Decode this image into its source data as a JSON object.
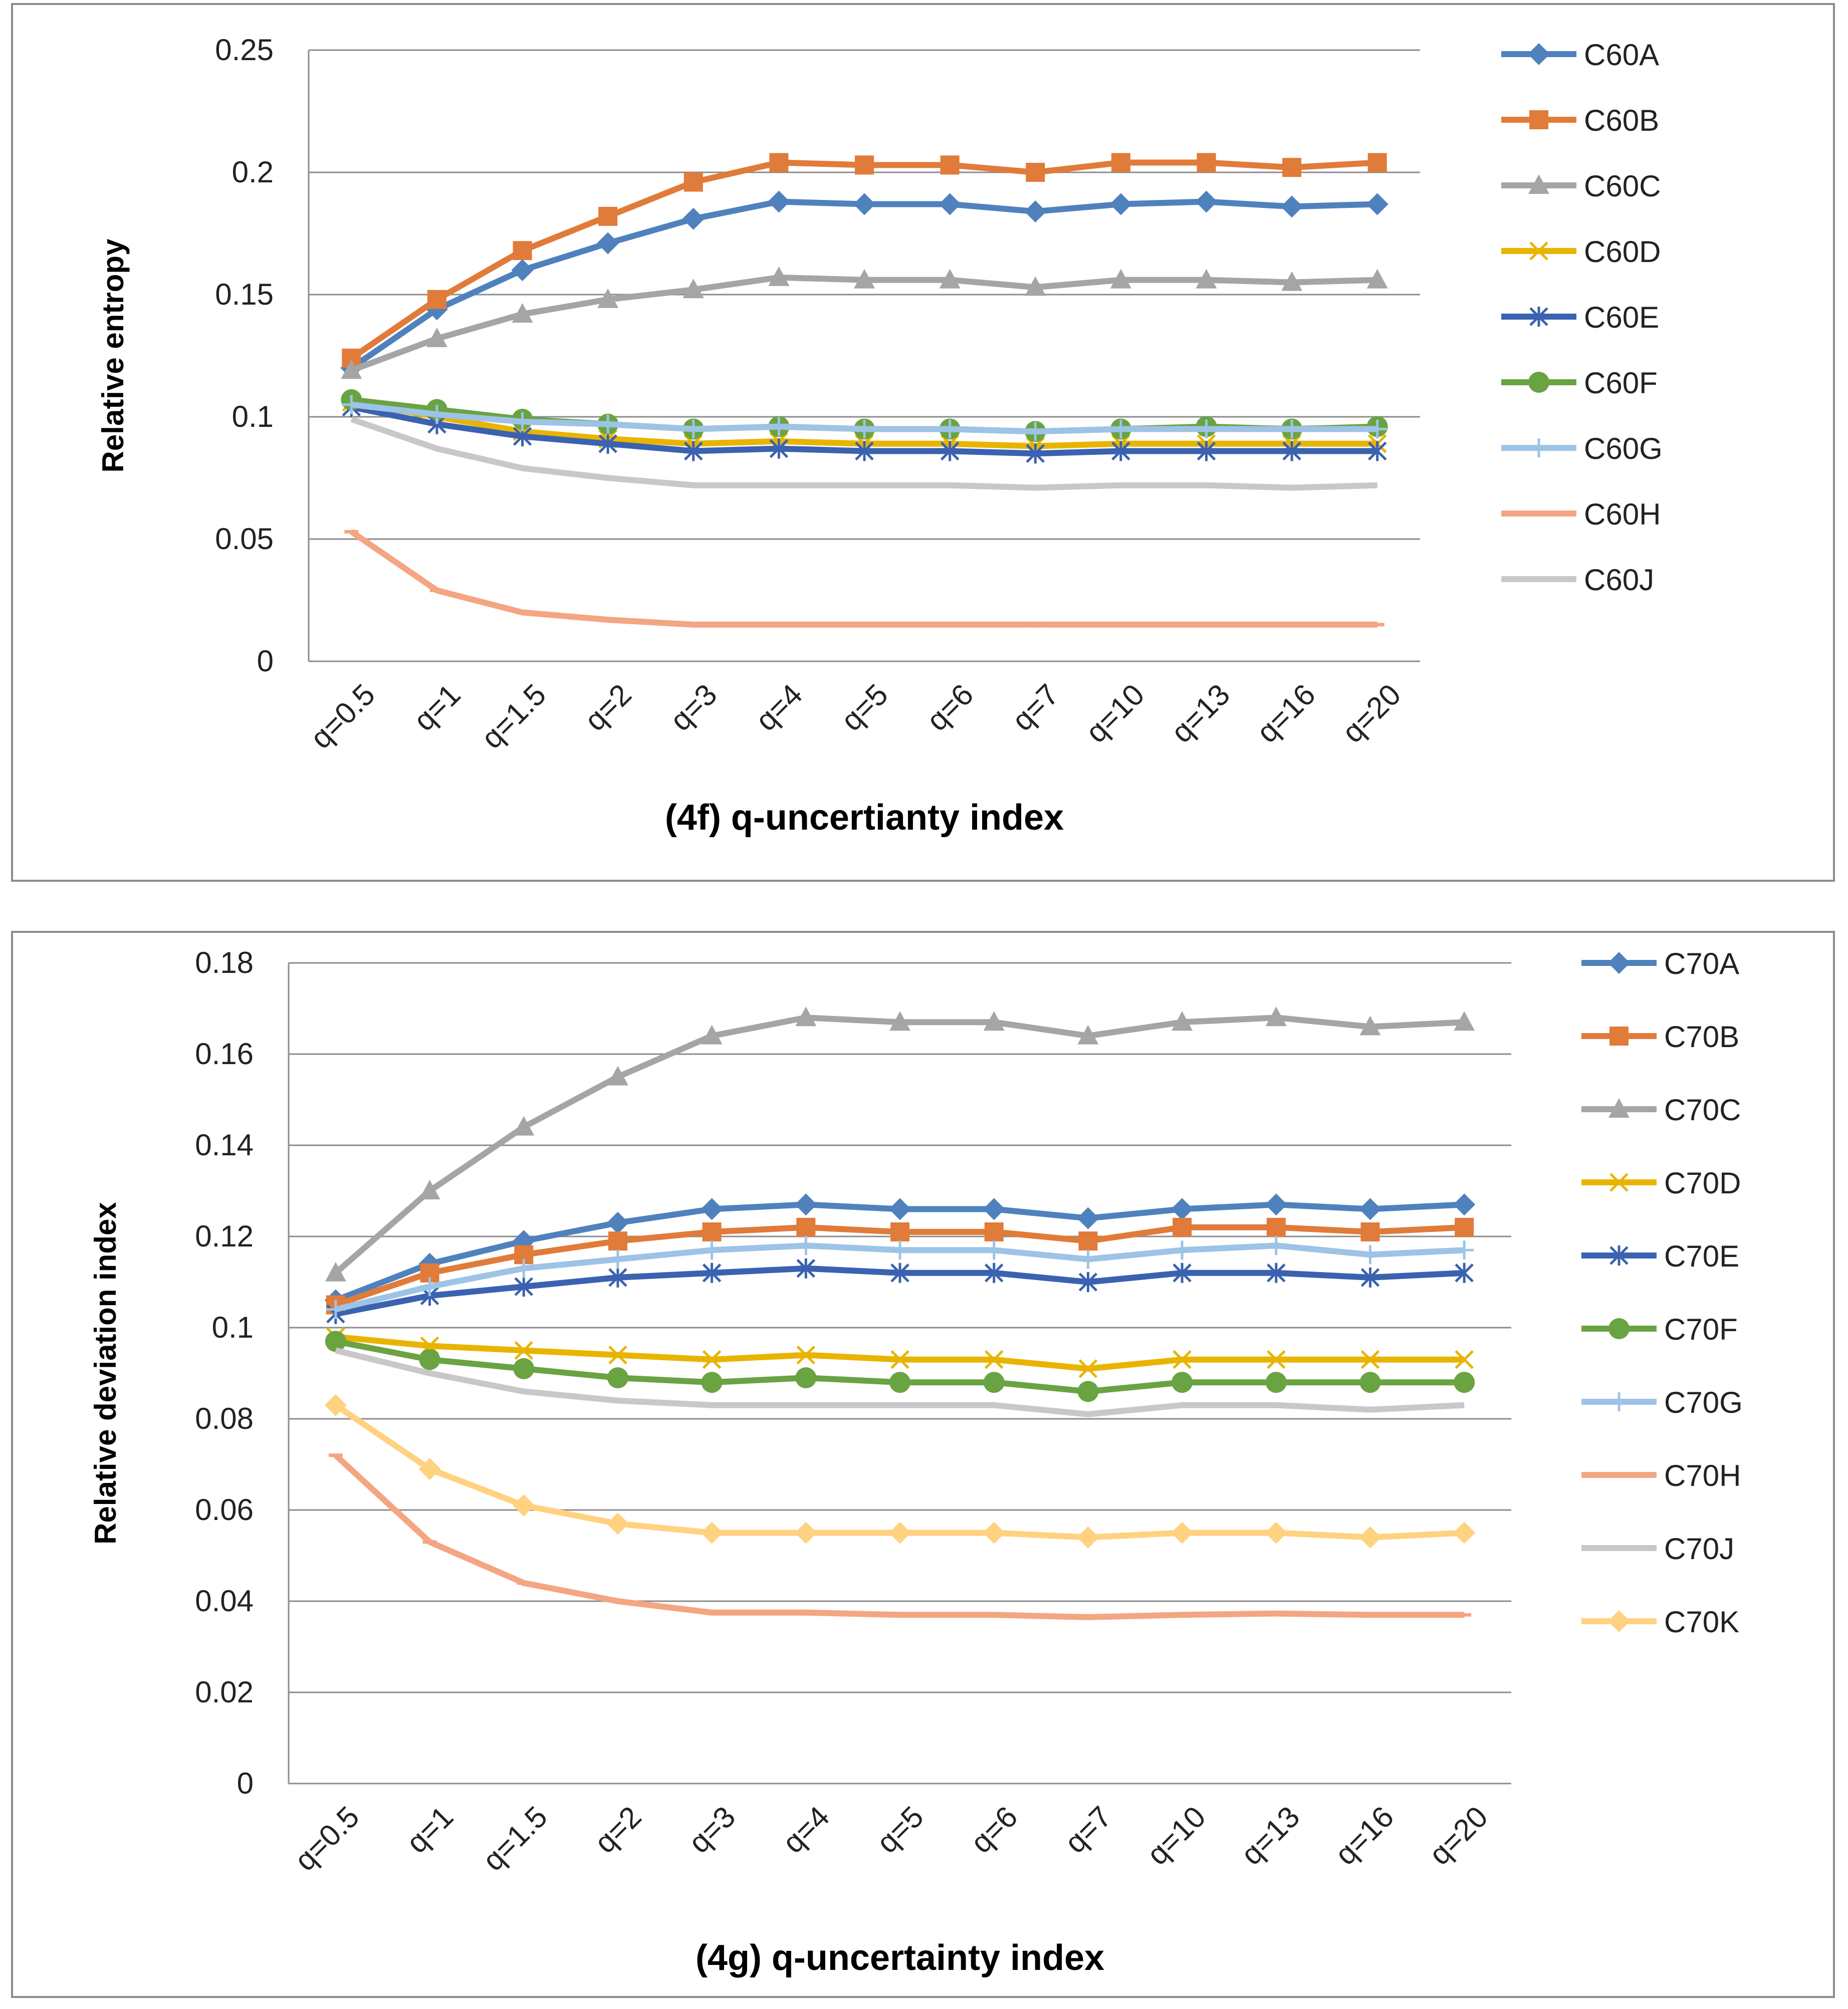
{
  "chart_data": [
    {
      "type": "line",
      "title": "",
      "xlabel": "(4f) q-uncertianty index",
      "ylabel": "Relative entropy",
      "ylim": [
        0,
        0.25
      ],
      "yticks": [
        0,
        0.05,
        0.1,
        0.15,
        0.2,
        0.25
      ],
      "ytick_labels": [
        "0",
        "0.05",
        "0.1",
        "0.15",
        "0.2",
        "0.25"
      ],
      "grid": true,
      "legend": "right",
      "categories": [
        "q=0.5",
        "q=1",
        "q=1.5",
        "q=2",
        "q=3",
        "q=4",
        "q=5",
        "q=6",
        "q=7",
        "q=10",
        "q=13",
        "q=16",
        "q=20"
      ],
      "series": [
        {
          "name": "C60A",
          "color": "#4f81bd",
          "marker": "diamond",
          "values": [
            0.12,
            0.144,
            0.16,
            0.171,
            0.181,
            0.188,
            0.187,
            0.187,
            0.184,
            0.187,
            0.188,
            0.186,
            0.187
          ]
        },
        {
          "name": "C60B",
          "color": "#e07b39",
          "marker": "square",
          "values": [
            0.124,
            0.148,
            0.168,
            0.182,
            0.196,
            0.204,
            0.203,
            0.203,
            0.2,
            0.204,
            0.204,
            0.202,
            0.204
          ]
        },
        {
          "name": "C60C",
          "color": "#a5a5a5",
          "marker": "triangle",
          "values": [
            0.119,
            0.132,
            0.142,
            0.148,
            0.152,
            0.157,
            0.156,
            0.156,
            0.153,
            0.156,
            0.156,
            0.155,
            0.156
          ]
        },
        {
          "name": "C60D",
          "color": "#e8b400",
          "marker": "x",
          "values": [
            0.106,
            0.1,
            0.094,
            0.091,
            0.089,
            0.09,
            0.089,
            0.089,
            0.088,
            0.089,
            0.089,
            0.089,
            0.089
          ]
        },
        {
          "name": "C60E",
          "color": "#3a62b0",
          "marker": "star",
          "values": [
            0.104,
            0.097,
            0.092,
            0.089,
            0.086,
            0.087,
            0.086,
            0.086,
            0.085,
            0.086,
            0.086,
            0.086,
            0.086
          ]
        },
        {
          "name": "C60F",
          "color": "#6aa342",
          "marker": "circle",
          "values": [
            0.107,
            0.103,
            0.099,
            0.097,
            0.095,
            0.096,
            0.095,
            0.095,
            0.094,
            0.095,
            0.096,
            0.095,
            0.096
          ]
        },
        {
          "name": "C60G",
          "color": "#9dc3e6",
          "marker": "plus",
          "values": [
            0.105,
            0.101,
            0.098,
            0.097,
            0.095,
            0.096,
            0.095,
            0.095,
            0.094,
            0.095,
            0.095,
            0.095,
            0.095
          ]
        },
        {
          "name": "C60H",
          "color": "#f4a582",
          "marker": "dash",
          "values": [
            0.053,
            0.029,
            0.02,
            0.017,
            0.015,
            0.015,
            0.015,
            0.015,
            0.015,
            0.015,
            0.015,
            0.015,
            0.015
          ]
        },
        {
          "name": "C60J",
          "color": "#c8c8c8",
          "marker": "none",
          "values": [
            0.099,
            0.087,
            0.079,
            0.075,
            0.072,
            0.072,
            0.072,
            0.072,
            0.071,
            0.072,
            0.072,
            0.071,
            0.072
          ]
        }
      ]
    },
    {
      "type": "line",
      "title": "",
      "xlabel": "(4g) q-uncertainty index",
      "ylabel": "Relative deviation index",
      "ylim": [
        0,
        0.18
      ],
      "yticks": [
        0,
        0.02,
        0.04,
        0.06,
        0.08,
        0.1,
        0.12,
        0.14,
        0.16,
        0.18
      ],
      "ytick_labels": [
        "0",
        "0.02",
        "0.04",
        "0.06",
        "0.08",
        "0.1",
        "0.12",
        "0.14",
        "0.16",
        "0.18"
      ],
      "grid": true,
      "legend": "right",
      "categories": [
        "q=0.5",
        "q=1",
        "q=1.5",
        "q=2",
        "q=3",
        "q=4",
        "q=5",
        "q=6",
        "q=7",
        "q=10",
        "q=13",
        "q=16",
        "q=20"
      ],
      "series": [
        {
          "name": "C70A",
          "color": "#4f81bd",
          "marker": "diamond",
          "values": [
            0.106,
            0.114,
            0.119,
            0.123,
            0.126,
            0.127,
            0.126,
            0.126,
            0.124,
            0.126,
            0.127,
            0.126,
            0.127
          ]
        },
        {
          "name": "C70B",
          "color": "#e07b39",
          "marker": "square",
          "values": [
            0.105,
            0.112,
            0.116,
            0.119,
            0.121,
            0.122,
            0.121,
            0.121,
            0.119,
            0.122,
            0.122,
            0.121,
            0.122
          ]
        },
        {
          "name": "C70C",
          "color": "#a5a5a5",
          "marker": "triangle",
          "values": [
            0.112,
            0.13,
            0.144,
            0.155,
            0.164,
            0.168,
            0.167,
            0.167,
            0.164,
            0.167,
            0.168,
            0.166,
            0.167
          ]
        },
        {
          "name": "C70D",
          "color": "#e8b400",
          "marker": "x",
          "values": [
            0.098,
            0.096,
            0.095,
            0.094,
            0.093,
            0.094,
            0.093,
            0.093,
            0.091,
            0.093,
            0.093,
            0.093,
            0.093
          ]
        },
        {
          "name": "C70E",
          "color": "#3a62b0",
          "marker": "star",
          "values": [
            0.103,
            0.107,
            0.109,
            0.111,
            0.112,
            0.113,
            0.112,
            0.112,
            0.11,
            0.112,
            0.112,
            0.111,
            0.112
          ]
        },
        {
          "name": "C70F",
          "color": "#6aa342",
          "marker": "circle",
          "values": [
            0.097,
            0.093,
            0.091,
            0.089,
            0.088,
            0.089,
            0.088,
            0.088,
            0.086,
            0.088,
            0.088,
            0.088,
            0.088
          ]
        },
        {
          "name": "C70G",
          "color": "#9dc3e6",
          "marker": "plus",
          "values": [
            0.104,
            0.109,
            0.113,
            0.115,
            0.117,
            0.118,
            0.117,
            0.117,
            0.115,
            0.117,
            0.118,
            0.116,
            0.117
          ]
        },
        {
          "name": "C70H",
          "color": "#f4a582",
          "marker": "dash",
          "values": [
            0.072,
            0.053,
            0.044,
            0.04,
            0.0375,
            0.0375,
            0.037,
            0.037,
            0.0365,
            0.037,
            0.0373,
            0.037,
            0.037
          ]
        },
        {
          "name": "C70J",
          "color": "#c8c8c8",
          "marker": "none",
          "values": [
            0.095,
            0.09,
            0.086,
            0.084,
            0.083,
            0.083,
            0.083,
            0.083,
            0.081,
            0.083,
            0.083,
            0.082,
            0.083
          ]
        },
        {
          "name": "C70K",
          "color": "#ffd27f",
          "marker": "diamond",
          "values": [
            0.083,
            0.069,
            0.061,
            0.057,
            0.055,
            0.055,
            0.055,
            0.055,
            0.054,
            0.055,
            0.055,
            0.054,
            0.055
          ]
        }
      ]
    }
  ]
}
